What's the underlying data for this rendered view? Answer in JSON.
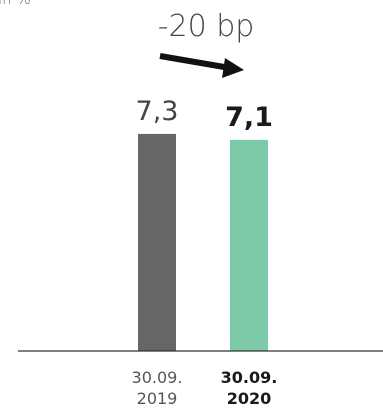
{
  "unit_label": "in %",
  "change_label": "-20 bp",
  "colors": {
    "bar_2019": "#666666",
    "bar_2020": "#7dc9a8",
    "axis": "#333333",
    "arrow": "#111111"
  },
  "chart_data": {
    "type": "bar",
    "categories": [
      {
        "line1": "30.09.",
        "line2": "2019"
      },
      {
        "line1": "30.09.",
        "line2": "2020"
      }
    ],
    "values": [
      7.3,
      7.1
    ],
    "value_labels": [
      "7,3",
      "7,1"
    ],
    "highlight_index": 1,
    "ylim": [
      0,
      7.6
    ],
    "grid": false,
    "legend": "none"
  }
}
